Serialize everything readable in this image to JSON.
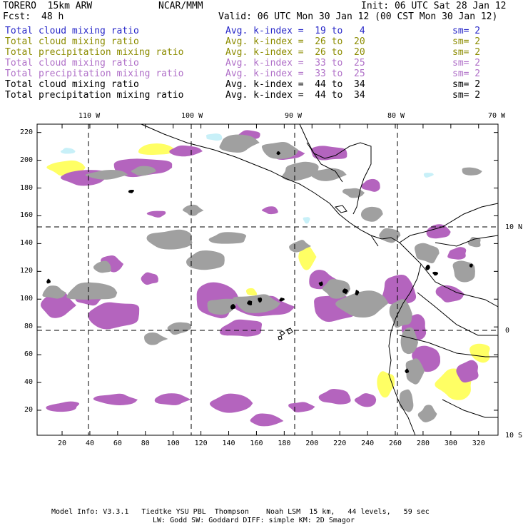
{
  "header": {
    "model": "TORERO  15km ARW",
    "org": "NCAR/MMM",
    "init": "Init: 06 UTC Sat 28 Jan 12",
    "fcst_label": "Fcst:",
    "fcst_value": "48 h",
    "valid": "Valid: 06 UTC Mon 30 Jan 12 (00 CST Mon 30 Jan 12)"
  },
  "legend": [
    {
      "field": "Total cloud mixing ratio",
      "kindex": "Avg. k-index =  19 to   4",
      "sm": "sm= 2",
      "color": "#2828c8"
    },
    {
      "field": "Total cloud mixing ratio",
      "kindex": "Avg. k-index =  26 to  20",
      "sm": "sm= 2",
      "color": "#8c8c00"
    },
    {
      "field": "Total precipitation mixing ratio",
      "kindex": "Avg. k-index =  26 to  20",
      "sm": "sm= 2",
      "color": "#8c8c00"
    },
    {
      "field": "Total cloud mixing ratio",
      "kindex": "Avg. k-index =  33 to  25",
      "sm": "sm= 2",
      "color": "#b070c8"
    },
    {
      "field": "Total precipitation mixing ratio",
      "kindex": "Avg. k-index =  33 to  25",
      "sm": "sm= 2",
      "color": "#b070c8"
    },
    {
      "field": "Total cloud mixing ratio",
      "kindex": "Avg. k-index =  44 to  34",
      "sm": "sm= 2",
      "color": "#000000"
    },
    {
      "field": "Total precipitation mixing ratio",
      "kindex": "Avg. k-index =  44 to  34",
      "sm": "sm= 2",
      "color": "#000000"
    }
  ],
  "map": {
    "lon_labels": [
      "110 W",
      "100 W",
      "90 W",
      "80 W",
      "70 W"
    ],
    "lat_labels": [
      "10 N",
      "0",
      "10 S"
    ],
    "x_ticks": [
      "20",
      "40",
      "60",
      "80",
      "100",
      "120",
      "140",
      "160",
      "180",
      "200",
      "220",
      "240",
      "260",
      "280",
      "300",
      "320"
    ],
    "y_ticks": [
      "220",
      "200",
      "180",
      "160",
      "140",
      "120",
      "100",
      "80",
      "60",
      "40",
      "20"
    ],
    "colors": {
      "light_cyan": "#c8f0f8",
      "yellow": "#ffff64",
      "purple": "#b464be",
      "gray": "#a0a0a0",
      "dark_gray": "#505050",
      "black": "#000000"
    }
  },
  "footer": {
    "line1": "Model Info: V3.3.1   Tiedtke YSU PBL  Thompson    Noah LSM  15 km,   44 levels,   59 sec",
    "line2": "LW: Godd SW: Goddard DIFF: simple KM: 2D Smagor"
  }
}
